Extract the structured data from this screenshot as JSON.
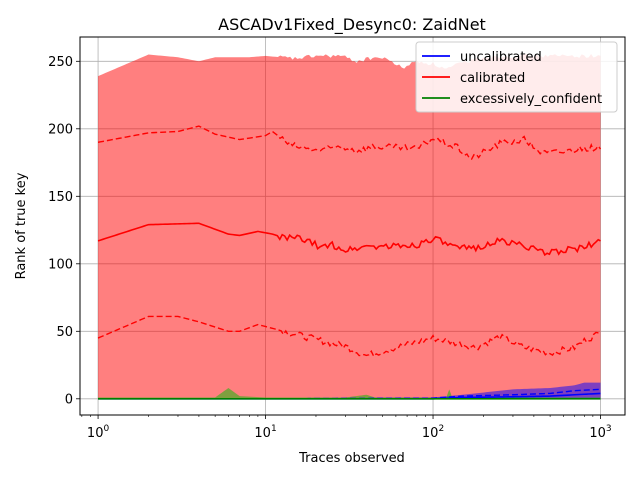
{
  "chart_data": {
    "type": "line",
    "title": "ASCADv1Fixed_Desync0: ZaidNet",
    "xlabel": "Traces observed",
    "ylabel": "Rank of true key",
    "xscale": "log",
    "xlim": [
      0.78,
      1400
    ],
    "ylim": [
      -12,
      268
    ],
    "grid": true,
    "legend_position": "top-right",
    "x_ticks": [
      {
        "value": 1,
        "base": "10",
        "exp": "0"
      },
      {
        "value": 10,
        "base": "10",
        "exp": "1"
      },
      {
        "value": 100,
        "base": "10",
        "exp": "2"
      },
      {
        "value": 1000,
        "base": "10",
        "exp": "3"
      }
    ],
    "y_ticks": [
      0,
      50,
      100,
      150,
      200,
      250
    ],
    "series": [
      {
        "name": "uncalibrated",
        "color": "#0000ff",
        "fill_color": "#0000ff",
        "median": [
          [
            1,
            0
          ],
          [
            10,
            0
          ],
          [
            100,
            0
          ],
          [
            150,
            1
          ],
          [
            300,
            1.5
          ],
          [
            500,
            2
          ],
          [
            700,
            3
          ],
          [
            1000,
            4
          ]
        ],
        "lower": [
          [
            1,
            0
          ],
          [
            10,
            0
          ],
          [
            100,
            0
          ],
          [
            150,
            0
          ],
          [
            300,
            0
          ],
          [
            500,
            0
          ],
          [
            700,
            0
          ],
          [
            1000,
            0
          ]
        ],
        "upper": [
          [
            1,
            0
          ],
          [
            10,
            0
          ],
          [
            100,
            0.5
          ],
          [
            150,
            2
          ],
          [
            300,
            3
          ],
          [
            500,
            4
          ],
          [
            700,
            6
          ],
          [
            1000,
            7
          ]
        ],
        "band_min": [
          [
            1,
            0
          ],
          [
            100,
            0
          ],
          [
            1000,
            0
          ]
        ],
        "band_max": [
          [
            1,
            0
          ],
          [
            100,
            1
          ],
          [
            150,
            3
          ],
          [
            300,
            7
          ],
          [
            500,
            8
          ],
          [
            700,
            10
          ],
          [
            800,
            12
          ],
          [
            1000,
            12
          ]
        ]
      },
      {
        "name": "calibrated",
        "color": "#ff0000",
        "fill_color": "#ff0000",
        "median": [
          [
            1,
            117
          ],
          [
            2,
            129
          ],
          [
            4,
            130
          ],
          [
            6,
            122
          ],
          [
            7,
            121
          ],
          [
            9,
            124
          ],
          [
            11,
            122
          ],
          [
            13,
            119
          ],
          [
            16,
            119
          ],
          [
            19,
            115
          ],
          [
            22,
            112
          ],
          [
            25,
            114
          ],
          [
            30,
            110
          ],
          [
            40,
            113
          ],
          [
            60,
            113
          ],
          [
            80,
            114
          ],
          [
            100,
            119
          ],
          [
            140,
            111
          ],
          [
            180,
            112
          ],
          [
            250,
            117
          ],
          [
            350,
            114
          ],
          [
            450,
            108
          ],
          [
            600,
            110
          ],
          [
            800,
            112
          ],
          [
            1000,
            117
          ]
        ],
        "lower": [
          [
            1,
            45
          ],
          [
            2,
            61
          ],
          [
            3,
            61
          ],
          [
            4,
            57
          ],
          [
            6,
            50
          ],
          [
            7,
            50
          ],
          [
            9,
            55
          ],
          [
            12,
            51
          ],
          [
            16,
            47
          ],
          [
            20,
            44
          ],
          [
            25,
            41
          ],
          [
            30,
            39
          ],
          [
            35,
            35
          ],
          [
            40,
            32
          ],
          [
            60,
            38
          ],
          [
            80,
            42
          ],
          [
            100,
            45
          ],
          [
            140,
            41
          ],
          [
            180,
            38
          ],
          [
            250,
            46
          ],
          [
            350,
            38
          ],
          [
            500,
            34
          ],
          [
            700,
            38
          ],
          [
            800,
            43
          ],
          [
            1000,
            49
          ]
        ],
        "upper": [
          [
            1,
            190
          ],
          [
            2,
            197
          ],
          [
            3,
            198
          ],
          [
            4,
            202
          ],
          [
            5,
            196
          ],
          [
            7,
            192
          ],
          [
            10,
            195
          ],
          [
            11,
            198
          ],
          [
            14,
            188
          ],
          [
            18,
            185
          ],
          [
            22,
            184
          ],
          [
            28,
            187
          ],
          [
            35,
            184
          ],
          [
            45,
            187
          ],
          [
            60,
            186
          ],
          [
            80,
            185
          ],
          [
            100,
            193
          ],
          [
            140,
            186
          ],
          [
            170,
            178
          ],
          [
            250,
            189
          ],
          [
            350,
            192
          ],
          [
            450,
            182
          ],
          [
            600,
            183
          ],
          [
            800,
            186
          ],
          [
            1000,
            185
          ]
        ],
        "band_min": [
          [
            1,
            0
          ],
          [
            1000,
            0
          ]
        ],
        "band_max": [
          [
            1,
            239
          ],
          [
            2,
            255
          ],
          [
            3,
            253
          ],
          [
            4,
            250
          ],
          [
            5,
            253
          ],
          [
            8,
            253
          ],
          [
            10,
            254
          ],
          [
            15,
            252
          ],
          [
            20,
            254
          ],
          [
            28,
            254
          ],
          [
            35,
            250
          ],
          [
            45,
            253
          ],
          [
            55,
            251
          ],
          [
            65,
            245
          ],
          [
            80,
            250
          ],
          [
            100,
            248
          ],
          [
            120,
            244
          ],
          [
            150,
            249
          ],
          [
            200,
            253
          ],
          [
            300,
            254
          ],
          [
            500,
            254
          ],
          [
            700,
            254
          ],
          [
            1000,
            254
          ]
        ]
      },
      {
        "name": "excessively_confident",
        "color": "#008000",
        "fill_color": "#00c000",
        "median": [
          [
            1,
            0
          ],
          [
            1000,
            0
          ]
        ],
        "lower": [
          [
            1,
            0
          ],
          [
            1000,
            0
          ]
        ],
        "upper": [
          [
            1,
            0
          ],
          [
            1000,
            0
          ]
        ],
        "band_min": [
          [
            1,
            0
          ],
          [
            1000,
            0
          ]
        ],
        "band_max": [
          [
            1,
            1
          ],
          [
            5,
            1
          ],
          [
            6,
            8
          ],
          [
            7,
            2
          ],
          [
            10,
            1
          ],
          [
            30,
            1
          ],
          [
            40,
            3
          ],
          [
            45,
            1
          ],
          [
            120,
            1
          ],
          [
            125,
            7
          ],
          [
            130,
            1
          ],
          [
            1000,
            1
          ]
        ]
      }
    ]
  }
}
